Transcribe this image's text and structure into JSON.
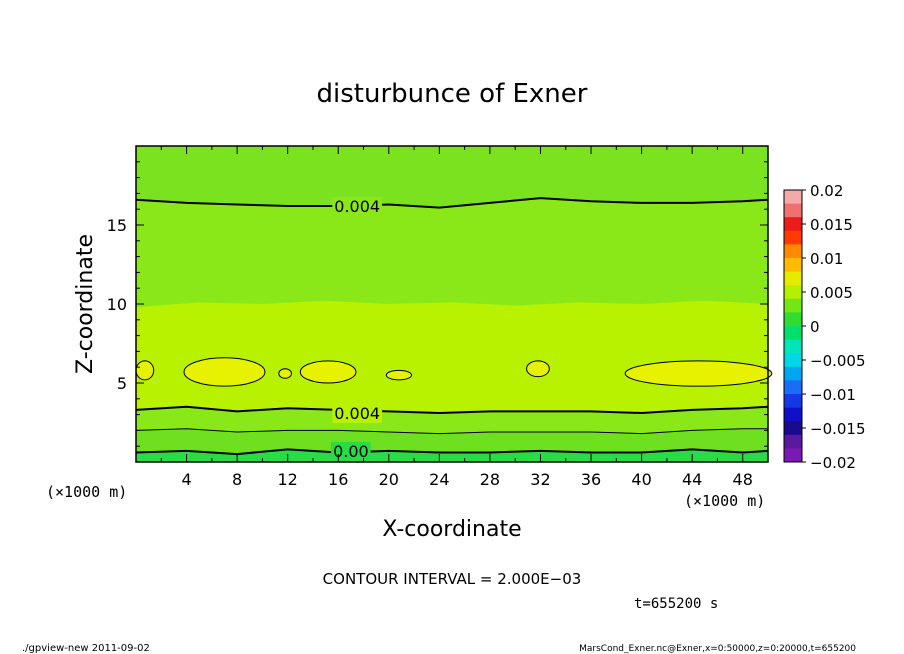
{
  "chart_data": {
    "type": "contour",
    "title": "disturbunce of Exner",
    "xlabel": "X-coordinate",
    "ylabel": "Z-coordinate",
    "xlim": [
      0,
      50
    ],
    "ylim": [
      0,
      20
    ],
    "x_ticks": [
      4,
      8,
      12,
      16,
      20,
      24,
      28,
      32,
      36,
      40,
      44,
      48
    ],
    "y_ticks": [
      5,
      10,
      15
    ],
    "x_unit": "(×1000 m)",
    "y_unit": "(×1000 m)",
    "contour_labels": [
      {
        "text": "0.004",
        "x": 17.5,
        "z": 16.2
      },
      {
        "text": "0.004",
        "x": 17.5,
        "z": 3.1
      },
      {
        "text": "0.00",
        "x": 17.0,
        "z": 0.7
      }
    ],
    "contours": [
      {
        "level": 0.004,
        "z_profile_x": [
          0,
          4,
          8,
          12,
          16,
          20,
          24,
          28,
          32,
          36,
          40,
          44,
          48,
          50
        ],
        "z": [
          16.6,
          16.4,
          16.3,
          16.2,
          16.2,
          16.3,
          16.1,
          16.4,
          16.7,
          16.5,
          16.4,
          16.4,
          16.5,
          16.6
        ]
      },
      {
        "level": 0.004,
        "z_profile_x": [
          0,
          4,
          8,
          12,
          16,
          20,
          24,
          28,
          32,
          36,
          40,
          44,
          48,
          50
        ],
        "z": [
          3.3,
          3.5,
          3.2,
          3.4,
          3.3,
          3.2,
          3.1,
          3.2,
          3.2,
          3.2,
          3.1,
          3.3,
          3.4,
          3.5
        ]
      },
      {
        "level": 0.002,
        "z_profile_x": [
          0,
          4,
          8,
          12,
          16,
          20,
          24,
          28,
          32,
          36,
          40,
          44,
          48,
          50
        ],
        "z": [
          2.0,
          2.1,
          1.9,
          2.0,
          2.0,
          1.9,
          1.8,
          1.9,
          1.9,
          1.9,
          1.8,
          2.0,
          2.1,
          2.1
        ]
      },
      {
        "level": 0.0,
        "z_profile_x": [
          0,
          4,
          8,
          12,
          16,
          20,
          24,
          28,
          32,
          36,
          40,
          44,
          48,
          50
        ],
        "z": [
          0.6,
          0.7,
          0.5,
          0.8,
          0.6,
          0.7,
          0.6,
          0.6,
          0.7,
          0.6,
          0.6,
          0.8,
          0.6,
          0.7
        ]
      }
    ],
    "highs": [
      {
        "x": 0.7,
        "z": 5.8,
        "rx": 0.7,
        "rz": 0.6
      },
      {
        "x": 7.0,
        "z": 5.7,
        "rx": 3.2,
        "rz": 0.9
      },
      {
        "x": 11.8,
        "z": 5.6,
        "rx": 0.5,
        "rz": 0.3
      },
      {
        "x": 15.2,
        "z": 5.7,
        "rx": 2.2,
        "rz": 0.7
      },
      {
        "x": 20.8,
        "z": 5.5,
        "rx": 1.0,
        "rz": 0.3
      },
      {
        "x": 31.8,
        "z": 5.9,
        "rx": 0.9,
        "rz": 0.5
      },
      {
        "x": 44.5,
        "z": 5.6,
        "rx": 5.8,
        "rz": 0.8
      }
    ],
    "colorbar": {
      "min": -0.02,
      "max": 0.02,
      "tick_labels": [
        "0.02",
        "0.015",
        "0.01",
        "0.005",
        "0",
        "−0.005",
        "−0.01",
        "−0.015",
        "−0.02"
      ],
      "colors": [
        "#f5aaaa",
        "#f07070",
        "#ec1c1c",
        "#ff3a00",
        "#ff8a00",
        "#ffbc00",
        "#e6ec00",
        "#b4f000",
        "#74e614",
        "#30dc30",
        "#00e06a",
        "#00e6b8",
        "#00d8e6",
        "#00a6f0",
        "#1a6ef5",
        "#1438e6",
        "#1010c8",
        "#1a0a90",
        "#5a1aa0",
        "#7a1ab4"
      ]
    },
    "fill_levels": {
      "above_z17": "#7ae21e",
      "z10_to_z17": "#8ae818",
      "z3_to_z10": "#b8f200",
      "z2_to_z3": "#8ae818",
      "z0_7_to_z2": "#6ee020",
      "below_z0_7": "#28dc46",
      "highs": "#e6f200"
    }
  },
  "annotations": {
    "contour_interval": "CONTOUR INTERVAL = 2.000E−03",
    "time": "t=655200 s",
    "footer_left": "./gpview-new 2011-09-02",
    "footer_right": "MarsCond_Exner.nc@Exner,x=0:50000,z=0:20000,t=655200"
  }
}
